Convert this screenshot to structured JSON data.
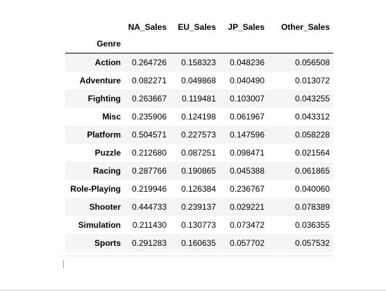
{
  "table": {
    "index_name": "Genre",
    "columns": [
      "NA_Sales",
      "EU_Sales",
      "JP_Sales",
      "Other_Sales"
    ],
    "rows": [
      {
        "genre": "Action",
        "values": [
          "0.264726",
          "0.158323",
          "0.048236",
          "0.056508"
        ]
      },
      {
        "genre": "Adventure",
        "values": [
          "0.082271",
          "0.049868",
          "0.040490",
          "0.013072"
        ]
      },
      {
        "genre": "Fighting",
        "values": [
          "0.263667",
          "0.119481",
          "0.103007",
          "0.043255"
        ]
      },
      {
        "genre": "Misc",
        "values": [
          "0.235906",
          "0.124198",
          "0.061967",
          "0.043312"
        ]
      },
      {
        "genre": "Platform",
        "values": [
          "0.504571",
          "0.227573",
          "0.147596",
          "0.058228"
        ]
      },
      {
        "genre": "Puzzle",
        "values": [
          "0.212680",
          "0.087251",
          "0.098471",
          "0.021564"
        ]
      },
      {
        "genre": "Racing",
        "values": [
          "0.287766",
          "0.190865",
          "0.045388",
          "0.061865"
        ]
      },
      {
        "genre": "Role-Playing",
        "values": [
          "0.219946",
          "0.126384",
          "0.236767",
          "0.040060"
        ]
      },
      {
        "genre": "Shooter",
        "values": [
          "0.444733",
          "0.239137",
          "0.029221",
          "0.078389"
        ]
      },
      {
        "genre": "Simulation",
        "values": [
          "0.211430",
          "0.130773",
          "0.073472",
          "0.036355"
        ]
      },
      {
        "genre": "Sports",
        "values": [
          "0.291283",
          "0.160635",
          "0.057702",
          "0.057532"
        ]
      }
    ]
  }
}
